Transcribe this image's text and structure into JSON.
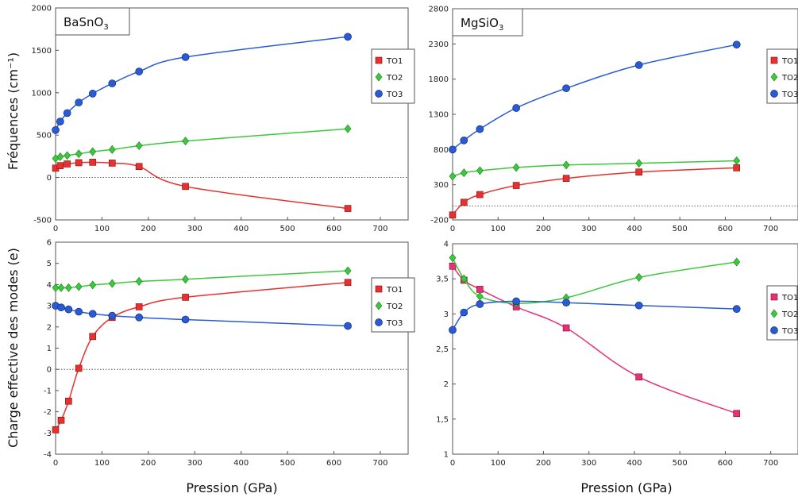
{
  "figure": {
    "ylabel_top": "Fréquences (cm⁻¹)",
    "ylabel_bottom": "Charge effective des modes (e)",
    "xlabel_left": "Pression (GPa)",
    "xlabel_right": "Pression (GPa)"
  },
  "chart_data": [
    {
      "type": "line",
      "title": "BaSnO3",
      "x_ticks": [
        "0",
        "100",
        "200",
        "300",
        "400",
        "500",
        "600",
        "700"
      ],
      "y_ticks": [
        "-500",
        "0",
        "500",
        "1000",
        "1500",
        "2000"
      ],
      "xlim": [
        0,
        760
      ],
      "ylim": [
        -500,
        2000
      ],
      "grid": false,
      "legend": "right",
      "zero_line": true,
      "series": [
        {
          "name": "TO1",
          "color": "#e8302f",
          "marker": "square",
          "x": [
            0,
            10,
            25,
            50,
            80,
            122,
            180,
            280,
            630
          ],
          "y": [
            110,
            140,
            160,
            175,
            180,
            170,
            130,
            -105,
            -365
          ]
        },
        {
          "name": "TO2",
          "color": "#3cc83c",
          "marker": "diamond",
          "x": [
            0,
            10,
            25,
            50,
            80,
            122,
            180,
            280,
            630
          ],
          "y": [
            225,
            245,
            260,
            280,
            305,
            330,
            375,
            430,
            575
          ]
        },
        {
          "name": "TO3",
          "color": "#2a5bd4",
          "marker": "circle",
          "x": [
            0,
            10,
            25,
            50,
            80,
            122,
            180,
            280,
            630
          ],
          "y": [
            560,
            660,
            760,
            885,
            990,
            1110,
            1250,
            1420,
            1660
          ]
        }
      ]
    },
    {
      "type": "line",
      "title": "MgSiO3",
      "x_ticks": [
        "0",
        "100",
        "200",
        "300",
        "400",
        "500",
        "600",
        "700"
      ],
      "y_ticks": [
        "-200",
        "300",
        "800",
        "1300",
        "1800",
        "2300",
        "2800"
      ],
      "xlim": [
        0,
        760
      ],
      "ylim": [
        -200,
        2800
      ],
      "grid": false,
      "legend": "right",
      "zero_line": true,
      "series": [
        {
          "name": "TO1",
          "color": "#e8302f",
          "marker": "square",
          "x": [
            0,
            25,
            60,
            140,
            250,
            410,
            625
          ],
          "y": [
            -130,
            50,
            160,
            290,
            390,
            480,
            540
          ]
        },
        {
          "name": "TO2",
          "color": "#3cc83c",
          "marker": "diamond",
          "x": [
            0,
            25,
            60,
            140,
            250,
            410,
            625
          ],
          "y": [
            420,
            470,
            500,
            545,
            580,
            605,
            640
          ]
        },
        {
          "name": "TO3",
          "color": "#2a5bd4",
          "marker": "circle",
          "x": [
            0,
            25,
            60,
            140,
            250,
            410,
            625
          ],
          "y": [
            800,
            930,
            1090,
            1390,
            1670,
            2000,
            2290
          ]
        }
      ]
    },
    {
      "type": "line",
      "title": "",
      "x_ticks": [
        "0",
        "100",
        "200",
        "300",
        "400",
        "500",
        "600",
        "700"
      ],
      "y_ticks": [
        "-4",
        "-3",
        "-2",
        "-1",
        "0",
        "1",
        "2",
        "3",
        "4",
        "5",
        "6"
      ],
      "xlim": [
        0,
        760
      ],
      "ylim": [
        -4,
        6
      ],
      "grid": false,
      "legend": "right",
      "zero_line": true,
      "series": [
        {
          "name": "TO1",
          "color": "#e8302f",
          "marker": "square",
          "x": [
            0,
            12,
            28,
            50,
            80,
            122,
            180,
            280,
            630
          ],
          "y": [
            -2.85,
            -2.4,
            -1.5,
            0.05,
            1.55,
            2.45,
            2.95,
            3.4,
            4.1
          ]
        },
        {
          "name": "TO2",
          "color": "#3cc83c",
          "marker": "diamond",
          "x": [
            0,
            12,
            28,
            50,
            80,
            122,
            180,
            280,
            630
          ],
          "y": [
            3.85,
            3.85,
            3.85,
            3.9,
            3.98,
            4.05,
            4.15,
            4.25,
            4.65
          ]
        },
        {
          "name": "TO3",
          "color": "#2a5bd4",
          "marker": "circle",
          "x": [
            0,
            12,
            28,
            50,
            80,
            122,
            180,
            280,
            630
          ],
          "y": [
            3.0,
            2.92,
            2.83,
            2.72,
            2.62,
            2.53,
            2.45,
            2.35,
            2.05
          ]
        }
      ]
    },
    {
      "type": "line",
      "title": "",
      "x_ticks": [
        "0",
        "100",
        "200",
        "300",
        "400",
        "500",
        "600",
        "700"
      ],
      "y_ticks": [
        "1",
        "1,5",
        "2",
        "2,5",
        "3",
        "3,5",
        "4"
      ],
      "xlim": [
        0,
        760
      ],
      "ylim": [
        1,
        4
      ],
      "grid": false,
      "legend": "right",
      "zero_line": false,
      "series": [
        {
          "name": "TO1",
          "color": "#e8307a",
          "marker": "square",
          "x": [
            0,
            25,
            60,
            140,
            250,
            410,
            625
          ],
          "y": [
            3.68,
            3.48,
            3.35,
            3.1,
            2.8,
            2.1,
            1.58
          ]
        },
        {
          "name": "TO2",
          "color": "#3cc83c",
          "marker": "diamond",
          "x": [
            0,
            25,
            60,
            140,
            250,
            410,
            625
          ],
          "y": [
            3.8,
            3.5,
            3.25,
            3.15,
            3.23,
            3.52,
            3.74
          ]
        },
        {
          "name": "TO3",
          "color": "#2a5bd4",
          "marker": "circle",
          "x": [
            0,
            25,
            60,
            140,
            250,
            410,
            625
          ],
          "y": [
            2.77,
            3.02,
            3.14,
            3.18,
            3.16,
            3.12,
            3.07
          ]
        }
      ]
    }
  ]
}
